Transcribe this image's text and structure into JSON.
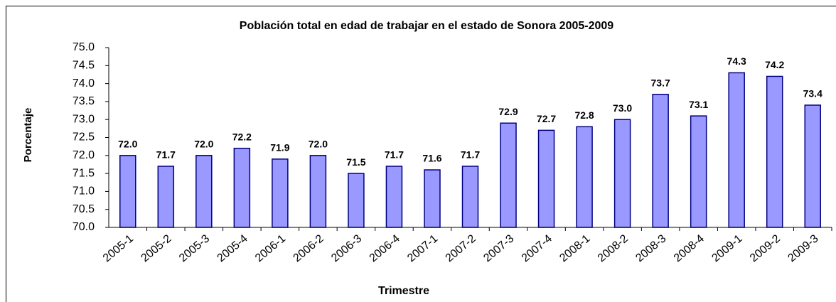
{
  "chart_data": {
    "type": "bar",
    "title": "Población total en edad de trabajar en el estado de Sonora 2005-2009",
    "x_label": "Trimestre",
    "y_label": "Porcentaje",
    "categories": [
      "2005-1",
      "2005-2",
      "2005-3",
      "2005-4",
      "2006-1",
      "2006-2",
      "2006-3",
      "2006-4",
      "2007-1",
      "2007-2",
      "2007-3",
      "2007-4",
      "2008-1",
      "2008-2",
      "2008-3",
      "2008-4",
      "2009-1",
      "2009-2",
      "2009-3"
    ],
    "values": [
      72.0,
      71.7,
      72.0,
      72.2,
      71.9,
      72.0,
      71.5,
      71.7,
      71.6,
      71.7,
      72.9,
      72.7,
      72.8,
      73.0,
      73.7,
      73.1,
      74.3,
      74.2,
      73.4
    ],
    "value_labels": [
      "72.0",
      "71.7",
      "72.0",
      "72.2",
      "71.9",
      "72.0",
      "71.5",
      "71.7",
      "71.6",
      "71.7",
      "72.9",
      "72.7",
      "72.8",
      "73.0",
      "73.7",
      "73.1",
      "74.3",
      "74.2",
      "73.4"
    ],
    "color": "#9999ff",
    "ylim": [
      70,
      75
    ],
    "yticks": [
      {
        "value": 70,
        "label": "70.0"
      },
      70.5,
      {
        "value": 71,
        "label": "71.0"
      },
      71.5,
      {
        "value": 72,
        "label": "72.0"
      },
      72.5,
      {
        "value": 73,
        "label": "73.0"
      },
      73.5,
      {
        "value": 74,
        "label": "74.0"
      },
      74.5,
      {
        "value": 75,
        "label": "75.0"
      }
    ],
    "grid": false
  }
}
